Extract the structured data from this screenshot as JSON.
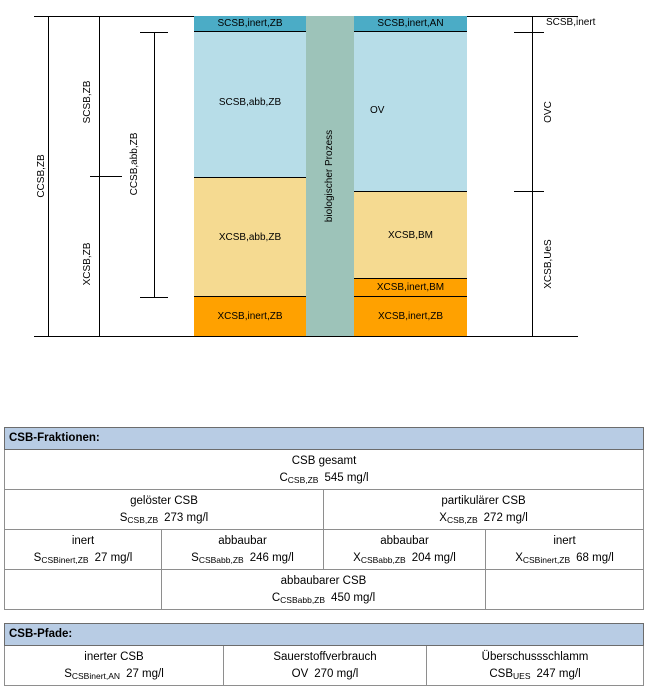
{
  "diagram": {
    "left_brackets": {
      "ccsb_zb": "CCSB,ZB",
      "scsb_zb": "SCSB,ZB",
      "xcsb_zb": "XCSB,ZB",
      "ccsb_abb_zb": "CCSB,abb,ZB"
    },
    "left_column": {
      "s_inert": "SCSB,inert,ZB",
      "s_abb": "SCSB,abb,ZB",
      "x_abb": "XCSB,abb,ZB",
      "x_inert": "XCSB,inert,ZB"
    },
    "process_label": "biologischer Prozess",
    "right_column": {
      "s_inert_an": "SCSB,inert,AN",
      "ov": "OV",
      "x_bm": "XCSB,BM",
      "x_inert_bm": "XCSB,inert,BM",
      "x_inert_zb": "XCSB,inert,ZB"
    },
    "right_brackets": {
      "scsb_inert": "SCSB,inert",
      "ovc": "OVC",
      "xcsb_ues": "XCSB,UeS"
    },
    "colors": {
      "teal": "#4bacc6",
      "light_blue": "#b7dde8",
      "light_yellow": "#f5da91",
      "orange": "#ffa100",
      "process_green": "#9dc3b9"
    }
  },
  "fraktionen": {
    "title": "CSB-Fraktionen:",
    "gesamt": {
      "label": "CSB gesamt",
      "sym": "C",
      "sub": "CSB,ZB",
      "value": "545 mg/l"
    },
    "geloest": {
      "label": "gelöster CSB",
      "sym": "S",
      "sub": "CSB,ZB",
      "value": "273 mg/l"
    },
    "partikulaer": {
      "label": "partikulärer CSB",
      "sym": "X",
      "sub": "CSB,ZB",
      "value": "272 mg/l"
    },
    "s_inert": {
      "label": "inert",
      "sym": "S",
      "sub": "CSBinert,ZB",
      "value": "27 mg/l"
    },
    "s_abb": {
      "label": "abbaubar",
      "sym": "S",
      "sub": "CSBabb,ZB",
      "value": "246 mg/l"
    },
    "x_abb": {
      "label": "abbaubar",
      "sym": "X",
      "sub": "CSBabb,ZB",
      "value": "204 mg/l"
    },
    "x_inert": {
      "label": "inert",
      "sym": "X",
      "sub": "CSBinert,ZB",
      "value": "68 mg/l"
    },
    "abb_total": {
      "label": "abbaubarer CSB",
      "sym": "C",
      "sub": "CSBabb,ZB",
      "value": "450 mg/l"
    }
  },
  "pfade": {
    "title": "CSB-Pfade:",
    "inert": {
      "label": "inerter CSB",
      "sym": "S",
      "sub": "CSBinert,AN",
      "value": "27 mg/l"
    },
    "sauerstoff": {
      "label": "Sauerstoffverbrauch",
      "sym": "OV",
      "sub": "",
      "value": "270 mg/l"
    },
    "schlamm": {
      "label": "Überschussschlamm",
      "sym": "CSB",
      "sub": "UES",
      "value": "247 mg/l"
    }
  }
}
